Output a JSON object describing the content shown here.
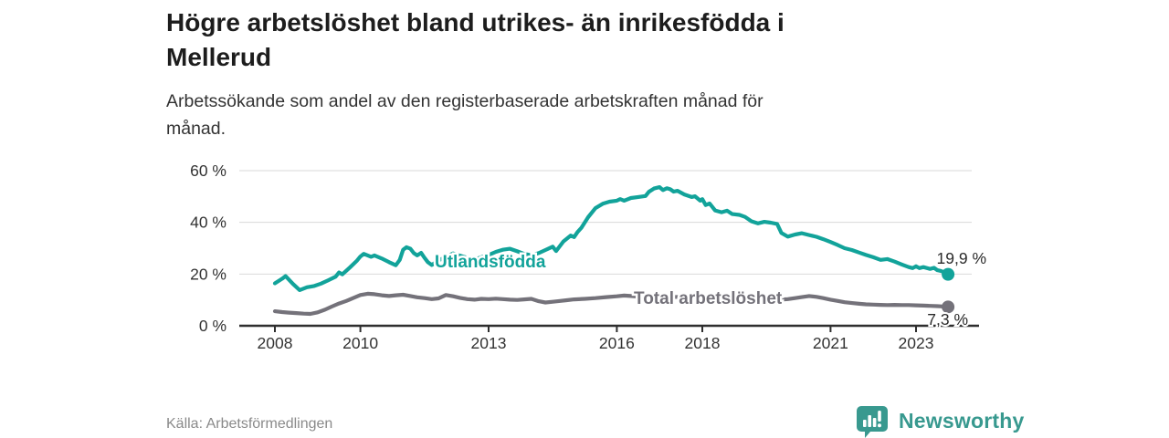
{
  "header": {
    "title_line1": "Högre arbetslöshet bland utrikes- än inrikesfödda i",
    "title_line2": "Mellerud",
    "subtitle_line1": "Arbetssökande som andel av den registerbaserade arbetskraften månad för",
    "subtitle_line2": "månad."
  },
  "footer": {
    "source": "Källa: Arbetsförmedlingen",
    "logo_text": "Newsworthy"
  },
  "colors": {
    "accent_teal": "#12a39a",
    "series_gray": "#74727a",
    "title_text": "#1d1d1d",
    "body_text": "#333333",
    "grid": "#d9d9d9",
    "axis": "#2e2e2e",
    "source_text": "#8a8a8a",
    "logo_teal": "#38998f"
  },
  "chart_data": {
    "type": "line",
    "title": "Högre arbetslöshet bland utrikes- än inrikesfödda i Mellerud",
    "xlabel": "",
    "ylabel": "%",
    "ylim": [
      0,
      60
    ],
    "x_range": [
      2008,
      2023.75
    ],
    "grid": "horizontal",
    "y_ticks": [
      {
        "v": 0,
        "label": "0 %"
      },
      {
        "v": 20,
        "label": "20 %"
      },
      {
        "v": 40,
        "label": "40 %"
      },
      {
        "v": 60,
        "label": "60 %"
      }
    ],
    "x_ticks": [
      {
        "v": 2008,
        "label": "2008"
      },
      {
        "v": 2010,
        "label": "2010"
      },
      {
        "v": 2013,
        "label": "2013"
      },
      {
        "v": 2016,
        "label": "2016"
      },
      {
        "v": 2018,
        "label": "2018"
      },
      {
        "v": 2021,
        "label": "2021"
      },
      {
        "v": 2023,
        "label": "2023"
      }
    ],
    "series": [
      {
        "name": "Utlandsfödda",
        "color": "#12a39a",
        "end_label": "19,9 %",
        "end_value": 19.9,
        "points": [
          [
            2008.0,
            16.4
          ],
          [
            2008.17,
            18.2
          ],
          [
            2008.25,
            19.2
          ],
          [
            2008.42,
            16.2
          ],
          [
            2008.58,
            13.8
          ],
          [
            2008.75,
            14.9
          ],
          [
            2008.92,
            15.4
          ],
          [
            2009.08,
            16.3
          ],
          [
            2009.25,
            17.6
          ],
          [
            2009.42,
            19.0
          ],
          [
            2009.5,
            20.6
          ],
          [
            2009.58,
            19.9
          ],
          [
            2009.75,
            22.5
          ],
          [
            2009.92,
            25.2
          ],
          [
            2010.0,
            26.8
          ],
          [
            2010.08,
            27.8
          ],
          [
            2010.25,
            26.7
          ],
          [
            2010.33,
            27.2
          ],
          [
            2010.5,
            26.0
          ],
          [
            2010.67,
            24.6
          ],
          [
            2010.83,
            23.4
          ],
          [
            2010.92,
            25.5
          ],
          [
            2011.0,
            29.4
          ],
          [
            2011.08,
            30.4
          ],
          [
            2011.17,
            29.8
          ],
          [
            2011.25,
            28.1
          ],
          [
            2011.33,
            27.2
          ],
          [
            2011.42,
            28.2
          ],
          [
            2011.5,
            26.3
          ],
          [
            2011.58,
            24.6
          ],
          [
            2011.67,
            23.5
          ],
          [
            2011.83,
            25.3
          ],
          [
            2012.0,
            26.6
          ],
          [
            2012.17,
            28.0
          ],
          [
            2012.33,
            27.1
          ],
          [
            2012.5,
            26.3
          ],
          [
            2012.67,
            25.6
          ],
          [
            2012.83,
            26.5
          ],
          [
            2013.0,
            27.4
          ],
          [
            2013.17,
            28.6
          ],
          [
            2013.33,
            29.4
          ],
          [
            2013.5,
            29.8
          ],
          [
            2013.67,
            28.8
          ],
          [
            2013.83,
            27.8
          ],
          [
            2014.0,
            27.3
          ],
          [
            2014.17,
            28.1
          ],
          [
            2014.33,
            29.3
          ],
          [
            2014.5,
            30.6
          ],
          [
            2014.58,
            28.9
          ],
          [
            2014.75,
            32.6
          ],
          [
            2014.92,
            34.9
          ],
          [
            2015.0,
            34.3
          ],
          [
            2015.08,
            36.2
          ],
          [
            2015.17,
            37.9
          ],
          [
            2015.33,
            42.0
          ],
          [
            2015.5,
            45.5
          ],
          [
            2015.67,
            47.2
          ],
          [
            2015.83,
            48.0
          ],
          [
            2016.0,
            48.4
          ],
          [
            2016.08,
            49.0
          ],
          [
            2016.17,
            48.4
          ],
          [
            2016.33,
            49.4
          ],
          [
            2016.5,
            49.8
          ],
          [
            2016.67,
            50.2
          ],
          [
            2016.75,
            51.8
          ],
          [
            2016.87,
            53.1
          ],
          [
            2017.0,
            53.6
          ],
          [
            2017.08,
            52.5
          ],
          [
            2017.17,
            53.2
          ],
          [
            2017.25,
            52.8
          ],
          [
            2017.33,
            51.9
          ],
          [
            2017.42,
            52.2
          ],
          [
            2017.58,
            50.8
          ],
          [
            2017.75,
            49.8
          ],
          [
            2017.83,
            50.1
          ],
          [
            2017.95,
            48.4
          ],
          [
            2018.0,
            49.0
          ],
          [
            2018.08,
            46.7
          ],
          [
            2018.17,
            47.3
          ],
          [
            2018.3,
            44.6
          ],
          [
            2018.45,
            43.9
          ],
          [
            2018.58,
            44.5
          ],
          [
            2018.7,
            43.2
          ],
          [
            2018.87,
            42.9
          ],
          [
            2019.0,
            42.1
          ],
          [
            2019.15,
            40.4
          ],
          [
            2019.3,
            39.6
          ],
          [
            2019.45,
            40.2
          ],
          [
            2019.6,
            39.9
          ],
          [
            2019.75,
            39.4
          ],
          [
            2019.85,
            35.9
          ],
          [
            2020.0,
            34.5
          ],
          [
            2020.17,
            35.3
          ],
          [
            2020.33,
            35.8
          ],
          [
            2020.5,
            35.1
          ],
          [
            2020.67,
            34.4
          ],
          [
            2020.83,
            33.5
          ],
          [
            2021.0,
            32.4
          ],
          [
            2021.17,
            31.2
          ],
          [
            2021.33,
            30.0
          ],
          [
            2021.5,
            29.3
          ],
          [
            2021.67,
            28.3
          ],
          [
            2021.83,
            27.4
          ],
          [
            2022.0,
            26.5
          ],
          [
            2022.17,
            25.5
          ],
          [
            2022.33,
            25.8
          ],
          [
            2022.5,
            24.8
          ],
          [
            2022.67,
            23.7
          ],
          [
            2022.83,
            22.7
          ],
          [
            2022.92,
            22.3
          ],
          [
            2023.0,
            23.0
          ],
          [
            2023.08,
            22.3
          ],
          [
            2023.17,
            22.7
          ],
          [
            2023.33,
            22.0
          ],
          [
            2023.42,
            22.4
          ],
          [
            2023.5,
            21.5
          ],
          [
            2023.58,
            21.2
          ],
          [
            2023.67,
            20.6
          ],
          [
            2023.75,
            19.9
          ]
        ]
      },
      {
        "name": "Total arbetslöshet",
        "color": "#74727a",
        "end_label": "7,3 %",
        "end_value": 7.3,
        "points": [
          [
            2008.0,
            5.6
          ],
          [
            2008.17,
            5.3
          ],
          [
            2008.33,
            5.1
          ],
          [
            2008.5,
            4.9
          ],
          [
            2008.67,
            4.7
          ],
          [
            2008.83,
            4.6
          ],
          [
            2009.0,
            5.2
          ],
          [
            2009.17,
            6.2
          ],
          [
            2009.33,
            7.4
          ],
          [
            2009.5,
            8.6
          ],
          [
            2009.67,
            9.6
          ],
          [
            2009.83,
            10.7
          ],
          [
            2010.0,
            11.9
          ],
          [
            2010.17,
            12.4
          ],
          [
            2010.33,
            12.2
          ],
          [
            2010.5,
            11.8
          ],
          [
            2010.67,
            11.5
          ],
          [
            2010.83,
            11.8
          ],
          [
            2011.0,
            12.0
          ],
          [
            2011.17,
            11.5
          ],
          [
            2011.33,
            11.0
          ],
          [
            2011.5,
            10.7
          ],
          [
            2011.67,
            10.3
          ],
          [
            2011.83,
            10.6
          ],
          [
            2012.0,
            11.9
          ],
          [
            2012.17,
            11.4
          ],
          [
            2012.33,
            10.8
          ],
          [
            2012.5,
            10.3
          ],
          [
            2012.67,
            10.1
          ],
          [
            2012.83,
            10.4
          ],
          [
            2013.0,
            10.3
          ],
          [
            2013.17,
            10.5
          ],
          [
            2013.33,
            10.3
          ],
          [
            2013.5,
            10.1
          ],
          [
            2013.67,
            10.0
          ],
          [
            2013.83,
            10.2
          ],
          [
            2014.0,
            10.4
          ],
          [
            2014.17,
            9.5
          ],
          [
            2014.33,
            9.0
          ],
          [
            2014.5,
            9.3
          ],
          [
            2014.67,
            9.6
          ],
          [
            2014.83,
            9.9
          ],
          [
            2015.0,
            10.2
          ],
          [
            2015.25,
            10.4
          ],
          [
            2015.5,
            10.7
          ],
          [
            2015.75,
            11.1
          ],
          [
            2016.0,
            11.4
          ],
          [
            2016.17,
            11.7
          ],
          [
            2016.33,
            11.5
          ],
          [
            2016.5,
            11.3
          ],
          [
            2016.67,
            11.1
          ],
          [
            2016.83,
            11.0
          ],
          [
            2017.0,
            10.9
          ],
          [
            2017.17,
            11.4
          ],
          [
            2017.33,
            11.2
          ],
          [
            2017.5,
            11.1
          ],
          [
            2017.67,
            11.0
          ],
          [
            2017.83,
            11.1
          ],
          [
            2018.0,
            10.6
          ],
          [
            2018.17,
            10.2
          ],
          [
            2018.33,
            9.9
          ],
          [
            2018.5,
            10.0
          ],
          [
            2018.67,
            10.2
          ],
          [
            2018.83,
            10.3
          ],
          [
            2019.0,
            10.2
          ],
          [
            2019.17,
            9.9
          ],
          [
            2019.33,
            9.6
          ],
          [
            2019.5,
            9.7
          ],
          [
            2019.67,
            9.9
          ],
          [
            2019.83,
            10.1
          ],
          [
            2020.0,
            10.3
          ],
          [
            2020.17,
            10.7
          ],
          [
            2020.33,
            11.1
          ],
          [
            2020.5,
            11.5
          ],
          [
            2020.67,
            11.2
          ],
          [
            2020.83,
            10.7
          ],
          [
            2021.0,
            10.1
          ],
          [
            2021.17,
            9.6
          ],
          [
            2021.33,
            9.1
          ],
          [
            2021.5,
            8.8
          ],
          [
            2021.67,
            8.5
          ],
          [
            2021.83,
            8.3
          ],
          [
            2022.0,
            8.2
          ],
          [
            2022.17,
            8.1
          ],
          [
            2022.33,
            8.0
          ],
          [
            2022.5,
            8.1
          ],
          [
            2022.67,
            8.0
          ],
          [
            2022.83,
            8.0
          ],
          [
            2023.0,
            7.9
          ],
          [
            2023.17,
            7.8
          ],
          [
            2023.33,
            7.7
          ],
          [
            2023.5,
            7.6
          ],
          [
            2023.62,
            7.5
          ],
          [
            2023.75,
            7.3
          ]
        ]
      }
    ],
    "series_label_positions_note": "Utlandsfödda label inline on chart; Total arbetslöshet label inline on chart"
  }
}
